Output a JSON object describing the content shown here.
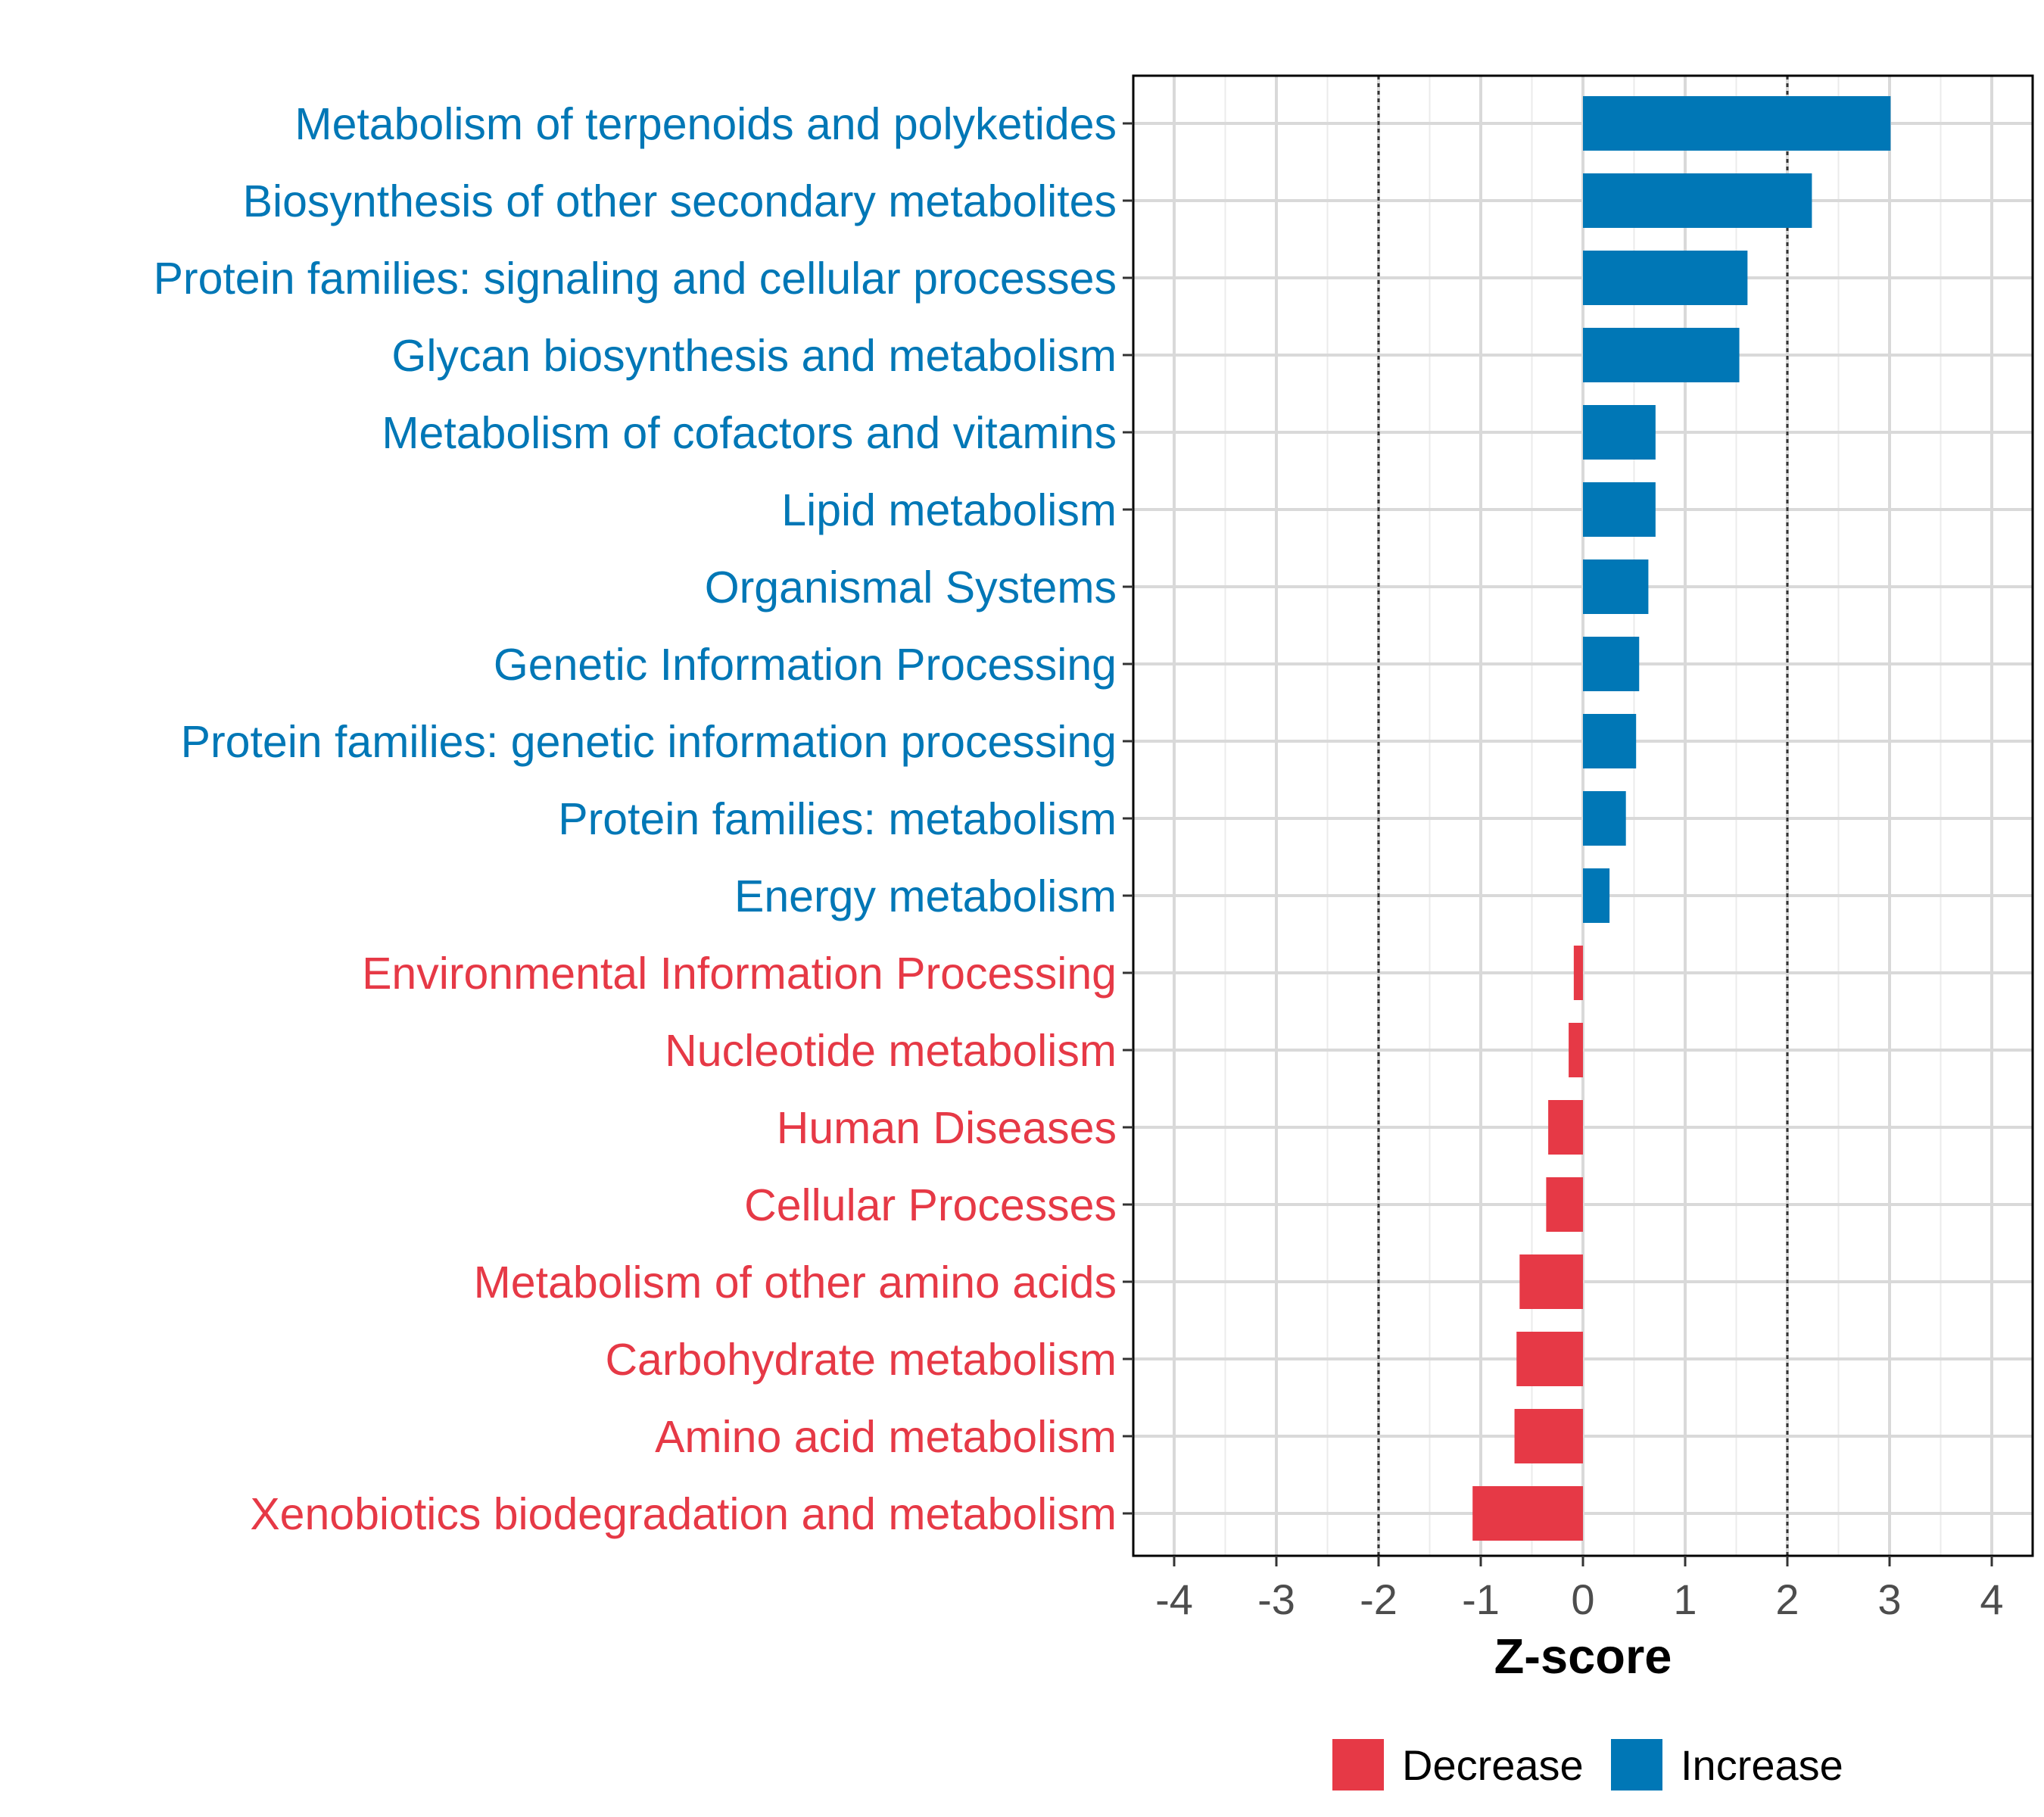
{
  "chart_data": {
    "type": "bar",
    "orientation": "horizontal",
    "xlabel": "Z-score",
    "xlim": [
      -4.4,
      4.4
    ],
    "xticks": [
      -4,
      -3,
      -2,
      -1,
      0,
      1,
      2,
      3,
      4
    ],
    "reference_lines": [
      -2,
      2
    ],
    "grid": true,
    "legend_position": "bottom",
    "legend": [
      {
        "key": "Decrease",
        "label": "Decrease",
        "color": "#E63946"
      },
      {
        "key": "Increase",
        "label": "Increase",
        "color": "#0077B6"
      }
    ],
    "categories": [
      {
        "label": "Metabolism of terpenoids and polyketides",
        "value": 3.01,
        "group": "Increase"
      },
      {
        "label": "Biosynthesis of other secondary metabolites",
        "value": 2.24,
        "group": "Increase"
      },
      {
        "label": "Protein families: signaling and cellular processes",
        "value": 1.61,
        "group": "Increase"
      },
      {
        "label": "Glycan biosynthesis and metabolism",
        "value": 1.53,
        "group": "Increase"
      },
      {
        "label": "Metabolism of cofactors and vitamins",
        "value": 0.71,
        "group": "Increase"
      },
      {
        "label": "Lipid metabolism",
        "value": 0.71,
        "group": "Increase"
      },
      {
        "label": "Organismal Systems",
        "value": 0.64,
        "group": "Increase"
      },
      {
        "label": "Genetic Information Processing",
        "value": 0.55,
        "group": "Increase"
      },
      {
        "label": "Protein families: genetic information processing",
        "value": 0.52,
        "group": "Increase"
      },
      {
        "label": "Protein families: metabolism",
        "value": 0.42,
        "group": "Increase"
      },
      {
        "label": "Energy metabolism",
        "value": 0.26,
        "group": "Increase"
      },
      {
        "label": "Environmental Information Processing",
        "value": -0.09,
        "group": "Decrease"
      },
      {
        "label": "Nucleotide metabolism",
        "value": -0.14,
        "group": "Decrease"
      },
      {
        "label": "Human Diseases",
        "value": -0.34,
        "group": "Decrease"
      },
      {
        "label": "Cellular Processes",
        "value": -0.36,
        "group": "Decrease"
      },
      {
        "label": "Metabolism of other amino acids",
        "value": -0.62,
        "group": "Decrease"
      },
      {
        "label": "Carbohydrate metabolism",
        "value": -0.65,
        "group": "Decrease"
      },
      {
        "label": "Amino acid metabolism",
        "value": -0.67,
        "group": "Decrease"
      },
      {
        "label": "Xenobiotics biodegradation and metabolism",
        "value": -1.08,
        "group": "Decrease"
      }
    ]
  }
}
